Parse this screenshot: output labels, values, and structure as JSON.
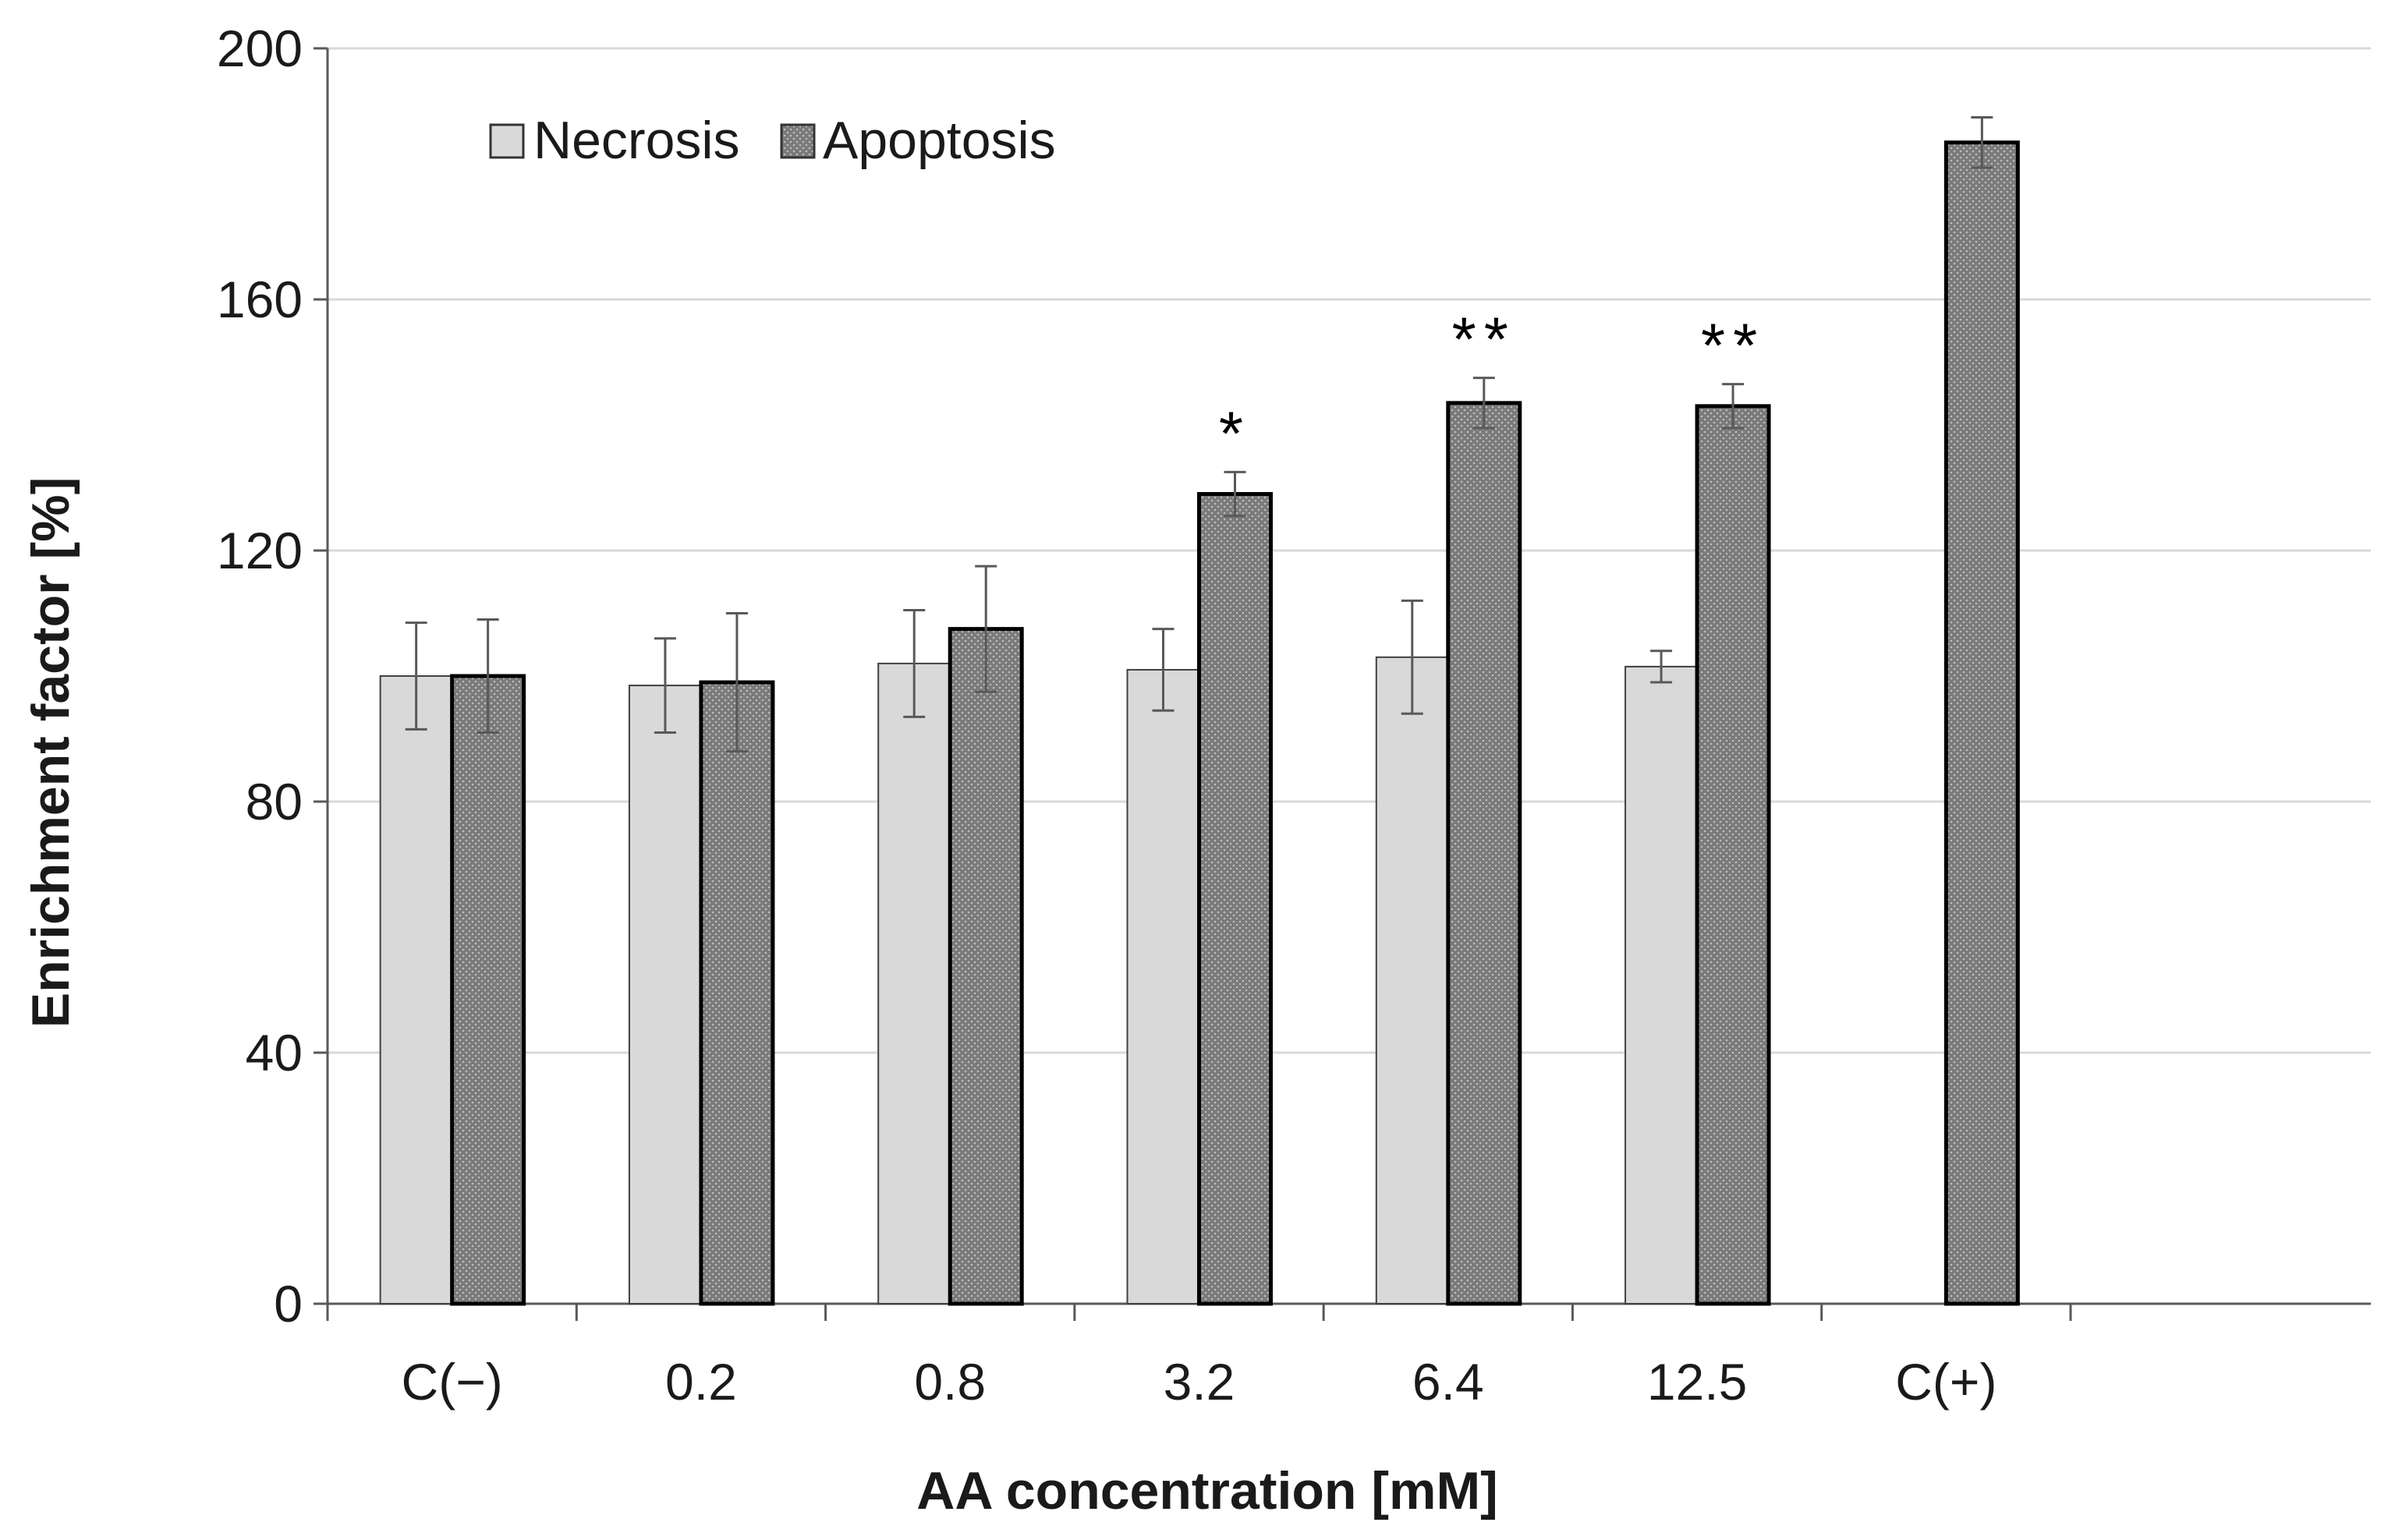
{
  "chart_data": {
    "type": "bar",
    "title": "",
    "xlabel": "AA concentration [mM]",
    "ylabel": "Enrichment factor [%]",
    "ylim": [
      0,
      200
    ],
    "yticks": [
      0,
      40,
      80,
      120,
      160,
      200
    ],
    "grid": true,
    "legend_position": "top-left",
    "categories": [
      "C(−)",
      "0.2",
      "0.8",
      "3.2",
      "6.4",
      "12.5",
      "C(+)"
    ],
    "series": [
      {
        "name": "Necrosis",
        "color": "#d9d9d9",
        "pattern": "solid",
        "values": [
          100,
          98.5,
          102,
          101,
          103,
          101.5,
          null
        ],
        "errors": [
          8.5,
          7.5,
          8.5,
          6.5,
          9,
          2.5,
          null
        ]
      },
      {
        "name": "Apoptosis",
        "color": "#7f7f7f",
        "pattern": "dotted",
        "values": [
          100,
          99,
          107.5,
          129,
          143.5,
          143,
          185
        ],
        "errors": [
          9,
          11,
          10,
          3.5,
          4,
          3.5,
          4
        ]
      }
    ],
    "annotations": [
      {
        "category": "3.2",
        "series": "Apoptosis",
        "text": "*"
      },
      {
        "category": "6.4",
        "series": "Apoptosis",
        "text": "**"
      },
      {
        "category": "12.5",
        "series": "Apoptosis",
        "text": "**"
      }
    ]
  }
}
